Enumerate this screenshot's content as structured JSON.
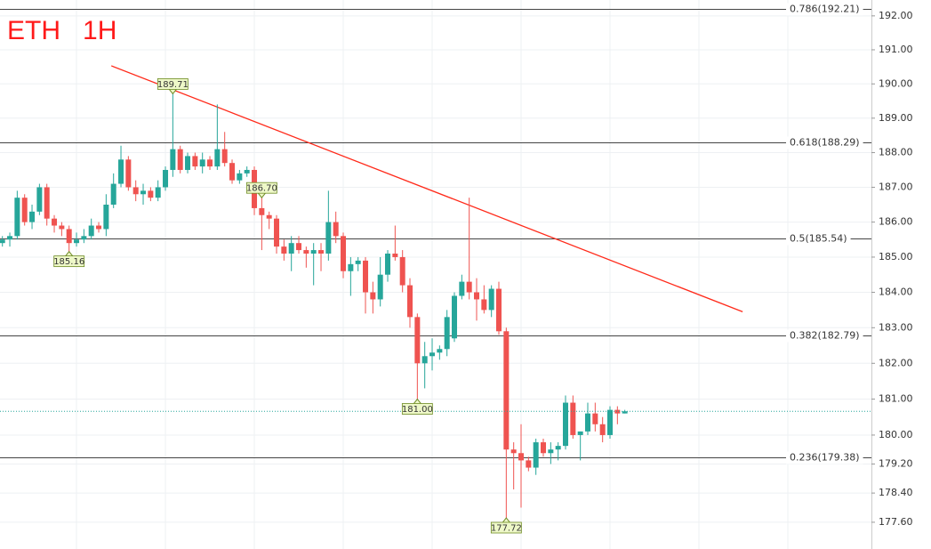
{
  "chart_data": {
    "type": "candlestick",
    "title": "ETH   1H",
    "log_scale": true,
    "grid": true,
    "up_color": "#26a69a",
    "down_color": "#ef5350",
    "title_color": "#ff1a1a",
    "open": [
      185.4,
      185.5,
      185.6,
      186.7,
      186.0,
      186.3,
      187.0,
      186.1,
      185.9,
      185.8,
      185.4,
      185.5,
      185.6,
      185.9,
      185.8,
      186.5,
      187.1,
      187.8,
      187.0,
      186.8,
      186.9,
      186.7,
      187.0,
      187.5,
      188.1,
      187.5,
      187.9,
      187.6,
      187.8,
      187.6,
      188.1,
      187.7,
      187.2,
      187.4,
      187.5,
      186.4,
      186.2,
      186.1,
      185.3,
      185.1,
      185.4,
      185.2,
      185.1,
      185.2,
      185.1,
      186.0,
      185.6,
      184.6,
      184.8,
      184.9,
      184.0,
      183.8,
      184.5,
      185.1,
      185.0,
      184.2,
      183.3,
      182.0,
      182.2,
      182.3,
      182.4,
      182.7,
      183.9,
      184.3,
      184.0,
      183.8,
      183.5,
      184.1,
      182.9,
      179.6,
      179.5,
      179.3,
      179.1,
      179.8,
      179.5,
      179.6,
      179.7,
      180.9,
      180.0,
      180.1,
      180.6,
      180.3,
      180.0,
      180.7,
      180.6
    ],
    "high": [
      185.6,
      185.7,
      186.9,
      186.8,
      186.5,
      187.1,
      187.1,
      186.2,
      186.0,
      185.9,
      185.7,
      185.8,
      186.1,
      186.0,
      186.8,
      187.4,
      188.2,
      187.9,
      187.2,
      187.1,
      187.0,
      187.2,
      187.6,
      189.71,
      188.2,
      188.0,
      188.0,
      188.0,
      187.9,
      189.4,
      188.6,
      187.8,
      187.5,
      187.6,
      187.6,
      186.7,
      186.3,
      186.2,
      185.5,
      185.6,
      185.6,
      185.3,
      185.4,
      185.4,
      186.9,
      186.3,
      185.7,
      185.0,
      185.0,
      185.0,
      184.3,
      185.0,
      185.2,
      185.9,
      185.2,
      184.4,
      183.4,
      182.6,
      182.7,
      182.5,
      183.5,
      184.0,
      184.5,
      186.7,
      184.4,
      184.2,
      184.2,
      184.3,
      183.0,
      179.8,
      180.3,
      179.4,
      179.9,
      179.9,
      179.8,
      179.8,
      181.1,
      181.1,
      180.1,
      180.9,
      180.9,
      180.5,
      180.8,
      180.8,
      180.7
    ],
    "low": [
      185.3,
      185.3,
      185.5,
      185.9,
      185.8,
      186.2,
      185.9,
      185.7,
      185.6,
      185.16,
      185.3,
      185.4,
      185.5,
      185.7,
      185.6,
      186.4,
      187.0,
      186.9,
      186.6,
      186.5,
      186.6,
      186.6,
      186.9,
      187.3,
      187.4,
      187.4,
      187.5,
      187.4,
      187.5,
      187.5,
      187.6,
      187.1,
      187.1,
      187.3,
      186.2,
      185.2,
      185.8,
      185.1,
      184.9,
      184.6,
      185.1,
      184.7,
      184.2,
      184.6,
      184.9,
      185.4,
      184.4,
      183.9,
      184.6,
      183.4,
      183.4,
      183.6,
      184.3,
      184.9,
      184.0,
      183.0,
      181.0,
      181.3,
      181.8,
      182.1,
      182.2,
      182.6,
      183.8,
      183.8,
      183.2,
      183.4,
      183.3,
      182.8,
      177.72,
      178.5,
      178.0,
      179.0,
      178.9,
      179.4,
      179.2,
      179.3,
      179.6,
      179.9,
      179.3,
      180.0,
      180.1,
      179.8,
      179.9,
      180.3,
      180.6
    ],
    "close": [
      185.5,
      185.6,
      186.7,
      186.0,
      186.3,
      187.0,
      186.1,
      185.9,
      185.8,
      185.4,
      185.5,
      185.6,
      185.9,
      185.8,
      186.5,
      187.1,
      187.8,
      187.0,
      186.8,
      186.9,
      186.7,
      187.0,
      187.5,
      188.1,
      187.5,
      187.9,
      187.6,
      187.8,
      187.6,
      188.1,
      187.7,
      187.2,
      187.4,
      187.5,
      186.4,
      186.2,
      186.1,
      185.3,
      185.1,
      185.4,
      185.2,
      185.1,
      185.2,
      185.1,
      186.0,
      185.6,
      184.6,
      184.8,
      184.9,
      184.0,
      183.8,
      184.5,
      185.1,
      185.0,
      184.2,
      183.3,
      182.0,
      182.2,
      182.3,
      182.4,
      183.3,
      183.9,
      184.3,
      184.0,
      183.8,
      183.5,
      184.1,
      182.9,
      179.6,
      179.5,
      179.3,
      179.1,
      179.8,
      179.5,
      179.6,
      179.7,
      180.9,
      180.0,
      180.1,
      180.6,
      180.3,
      180.0,
      180.7,
      180.6,
      180.66
    ],
    "ylim": [
      176.87,
      192.47
    ],
    "yticks": [
      {
        "value": 192,
        "label": "192.00"
      },
      {
        "value": 191,
        "label": "191.00"
      },
      {
        "value": 190,
        "label": "190.00"
      },
      {
        "value": 189,
        "label": "189.00"
      },
      {
        "value": 188,
        "label": "188.00"
      },
      {
        "value": 187,
        "label": "187.00"
      },
      {
        "value": 186,
        "label": "186.00"
      },
      {
        "value": 185,
        "label": "185.00"
      },
      {
        "value": 184,
        "label": "184.00"
      },
      {
        "value": 183,
        "label": "183.00"
      },
      {
        "value": 182,
        "label": "182.00"
      },
      {
        "value": 181,
        "label": "181.00"
      },
      {
        "value": 180,
        "label": "180.00"
      },
      {
        "value": 179.2,
        "label": "179.20"
      },
      {
        "value": 178.4,
        "label": "178.40"
      },
      {
        "value": 177.6,
        "label": "177.60"
      }
    ],
    "fib_levels": [
      {
        "value": 192.21,
        "label": "0.786(192.21)"
      },
      {
        "value": 188.29,
        "label": "0.618(188.29)"
      },
      {
        "value": 185.54,
        "label": "0.5(185.54)"
      },
      {
        "value": 182.79,
        "label": "0.382(182.79)"
      },
      {
        "value": 179.38,
        "label": "0.236(179.38)"
      }
    ],
    "price_callouts": [
      {
        "value": 189.71,
        "label": "189.71"
      },
      {
        "value": 185.16,
        "label": "185.16"
      },
      {
        "value": 186.7,
        "label": "186.70"
      },
      {
        "value": 181.0,
        "label": "181.00"
      },
      {
        "value": 177.72,
        "label": "177.72"
      }
    ],
    "trendline": {
      "color": "#ff2a1a",
      "start": [
        14.7,
        190.53
      ],
      "end": [
        99.9,
        183.45
      ]
    }
  }
}
